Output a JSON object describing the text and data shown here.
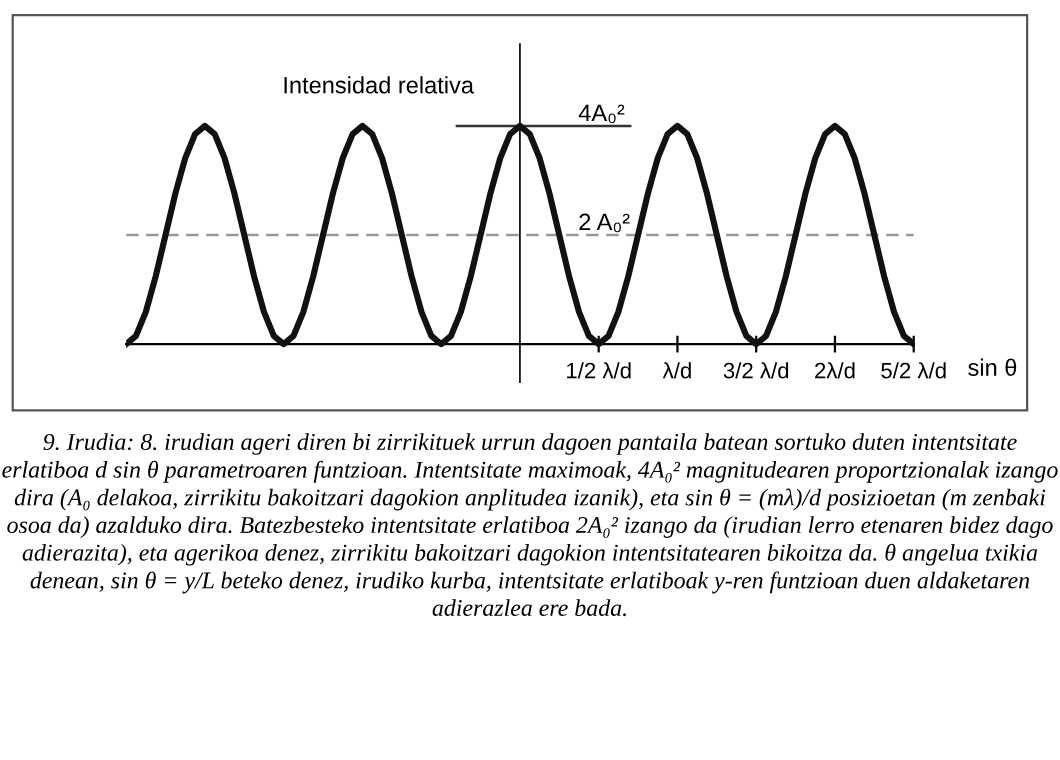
{
  "chart_data": {
    "type": "line",
    "ylabel": "Intensidad relativa",
    "xlabel": "sin θ",
    "categories": [
      null,
      null,
      null,
      null,
      null,
      null,
      null,
      null,
      null,
      null,
      null,
      null,
      null,
      null,
      null,
      null,
      null,
      null,
      null,
      null,
      null,
      null,
      null,
      null,
      null,
      null,
      null,
      null,
      null,
      null,
      null,
      null,
      null,
      null,
      null,
      null,
      null,
      null,
      null,
      null,
      null,
      null,
      null,
      null,
      null,
      null,
      null,
      null,
      "1/2 λ/d",
      null,
      null,
      null,
      null,
      null,
      null,
      null,
      "λ/d",
      null,
      null,
      null,
      null,
      null,
      null,
      null,
      "3/2 λ/d",
      null,
      null,
      null,
      null,
      null,
      null,
      null,
      "2λ/d",
      null,
      null,
      null,
      null,
      null,
      null,
      null,
      "5/2 λ/d"
    ],
    "series": [
      {
        "color": "#111111",
        "values": [
          0,
          0.15,
          0.59,
          1.24,
          2,
          2.76,
          3.41,
          3.85,
          4,
          3.85,
          3.41,
          2.76,
          2,
          1.24,
          0.59,
          0.15,
          0,
          0.15,
          0.59,
          1.24,
          2,
          2.76,
          3.41,
          3.85,
          4,
          3.85,
          3.41,
          2.76,
          2,
          1.24,
          0.59,
          0.15,
          0,
          0.15,
          0.59,
          1.24,
          2,
          2.76,
          3.41,
          3.85,
          4,
          3.85,
          3.41,
          2.76,
          2,
          1.24,
          0.59,
          0.15,
          0,
          0.15,
          0.59,
          1.24,
          2,
          2.76,
          3.41,
          3.85,
          4,
          3.85,
          3.41,
          2.76,
          2,
          1.24,
          0.59,
          0.15,
          0,
          0.15,
          0.59,
          1.24,
          2,
          2.76,
          3.41,
          3.85,
          4,
          3.85,
          3.41,
          2.76,
          2,
          1.24,
          0.59,
          0.15,
          0
        ]
      }
    ],
    "ylim": [
      -0.7,
      5.5
    ],
    "yticks": [
      {
        "value": 2,
        "label": "2 A₀²"
      },
      {
        "value": 4,
        "label": "4A₀²"
      }
    ],
    "ref_lines": [
      {
        "axis": "y",
        "value": 2,
        "label": null,
        "color": "#999999",
        "line_style": "dashed"
      },
      {
        "axis": "y",
        "value": 4,
        "label": null,
        "color": "#333333",
        "line_style": "solid"
      }
    ],
    "grid": false,
    "legend": false,
    "marker": "none",
    "line_style": "solid",
    "annotations": [
      "9. Irudia: 8. irudian ageri diren bi zirrikituek urrun dagoen pantaila batean sortuko duten intentsitate erlatiboa d sin θ parametroaren funtzioan. Intentsitate maximoak, 4A₀² magnitudearen proportzionalak izango dira (A₀ delakoa, zirrikitu bakoitzari dagokion anplitudea izanik), eta sin θ = (mλ)/d posizioetan (m zenbaki osoa da) azalduko dira. Batezbesteko intentsitate erlatiboa 2A₀² izango da (irudian lerro etenaren bidez dago adierazita), eta agerikoa denez, zirrikitu bakoitzari dagokion intentsitatearen bikoitza da. θ angelua txikia denean, sin θ = y/L beteko denez, irudiko kurba, intentsitate erlatiboak y-ren funtzioan duen aldaketaren adierazlea ere bada."
    ]
  }
}
